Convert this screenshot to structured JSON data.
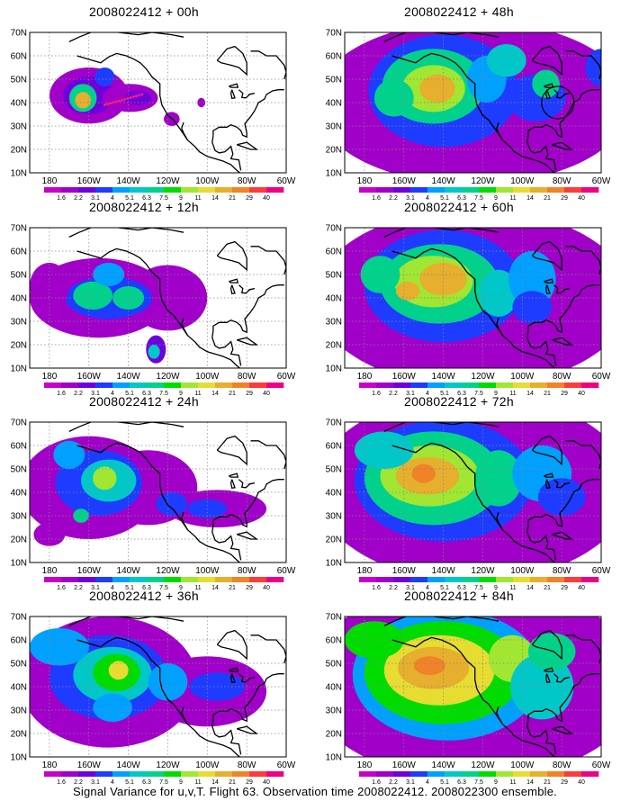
{
  "panels": [
    {
      "title": "2008022412 + 00h",
      "hour": 0
    },
    {
      "title": "2008022412 + 48h",
      "hour": 48
    },
    {
      "title": "2008022412 + 12h",
      "hour": 12
    },
    {
      "title": "2008022412 + 60h",
      "hour": 60
    },
    {
      "title": "2008022412 + 24h",
      "hour": 24
    },
    {
      "title": "2008022412 + 72h",
      "hour": 72
    },
    {
      "title": "2008022412 + 36h",
      "hour": 36
    },
    {
      "title": "2008022412 + 84h",
      "hour": 84
    }
  ],
  "axes": {
    "lat_labels": [
      "70N",
      "60N",
      "50N",
      "40N",
      "30N",
      "20N",
      "10N"
    ],
    "lon_labels": [
      "180",
      "160W",
      "140W",
      "120W",
      "100W",
      "80W",
      "60W"
    ],
    "lat_range": [
      10,
      70
    ],
    "lon_range": [
      -190,
      -60
    ],
    "grid": "dotted"
  },
  "colorbar": {
    "labels": [
      "1.6",
      "2.2",
      "3.1",
      "4",
      "5.1",
      "6.3",
      "7.5",
      "9",
      "11",
      "14",
      "21",
      "29",
      "40"
    ],
    "colors": [
      "#a000c8",
      "#6e00dc",
      "#1e3cff",
      "#00a0ff",
      "#00c8c8",
      "#00d28c",
      "#00dc00",
      "#a0e632",
      "#e6dc32",
      "#e6af2d",
      "#f08228",
      "#fa3c3c",
      "#f00082"
    ]
  },
  "footer": "Signal Variance for u,v,T. Flight 63. Observation time 2008022412. 2008022300 ensemble."
}
